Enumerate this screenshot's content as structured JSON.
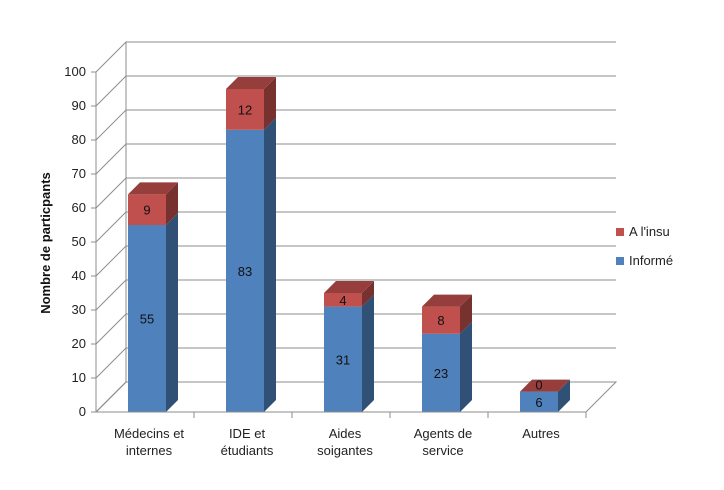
{
  "chart_data": {
    "type": "bar",
    "stacked": true,
    "three_d": true,
    "categories": [
      [
        "Médecins et",
        "internes"
      ],
      [
        "IDE et",
        "étudiants"
      ],
      [
        "Aides",
        "soigantes"
      ],
      [
        "Agents de",
        "service"
      ],
      [
        "Autres"
      ]
    ],
    "series": [
      {
        "name": "Informé",
        "values": [
          55,
          83,
          31,
          23,
          6
        ],
        "color": "#4f81bd"
      },
      {
        "name": "A l'insu",
        "values": [
          9,
          12,
          4,
          8,
          0
        ],
        "color": "#c0504d"
      }
    ],
    "ylabel": "Nombre de particpants",
    "ylim": [
      0,
      100
    ],
    "yticks": [
      0,
      10,
      20,
      30,
      40,
      50,
      60,
      70,
      80,
      90,
      100
    ],
    "grid": true,
    "legend": "right"
  }
}
